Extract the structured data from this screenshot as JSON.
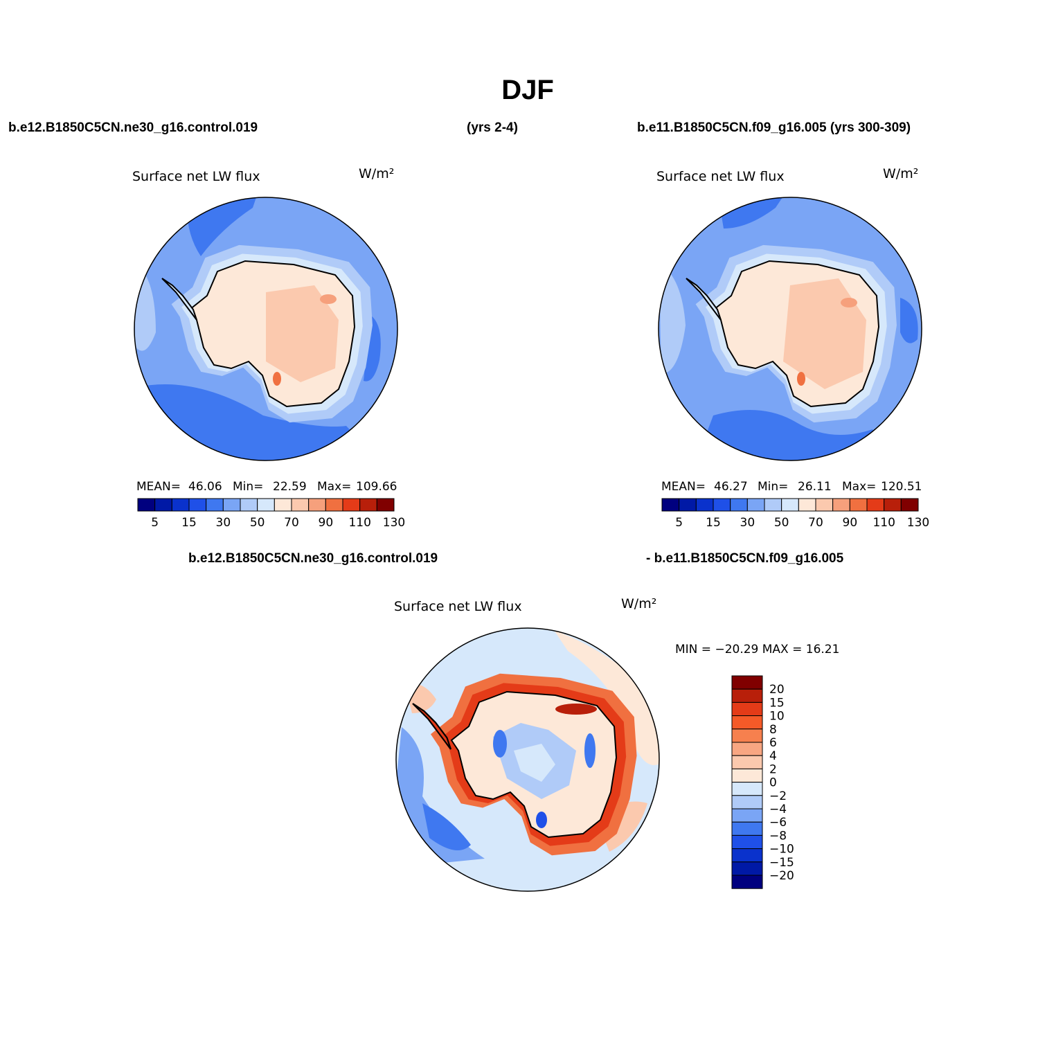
{
  "figure": {
    "title": "DJF",
    "top_left_case": "b.e12.B1850C5CN.ne30_g16.control.019",
    "top_left_years": "(yrs 2-4)",
    "top_right_case": "b.e11.B1850C5CN.f09_g16.005 (yrs 300-309)",
    "diff_case_a": "b.e12.B1850C5CN.ne30_g16.control.019",
    "diff_case_b": "- b.e11.B1850C5CN.f09_g16.005"
  },
  "chart_data": [
    {
      "type": "heatmap",
      "projection": "south-polar-stereographic",
      "title": "Surface net LW flux",
      "units": "W/m²",
      "stats": {
        "mean_label": "MEAN=",
        "mean": "46.06",
        "min_label": "Min=",
        "min": "22.59",
        "max_label": "Max=",
        "max": "109.66"
      },
      "colorbar": {
        "orientation": "horizontal",
        "levels": [
          5,
          10,
          15,
          20,
          30,
          40,
          50,
          60,
          70,
          80,
          90,
          100,
          110,
          120,
          130
        ],
        "tick_labels": [
          "5",
          "15",
          "30",
          "50",
          "70",
          "90",
          "110",
          "130"
        ],
        "colors": [
          "#00007f",
          "#0019a6",
          "#0a32cc",
          "#1f50e8",
          "#3f78f0",
          "#7aa5f5",
          "#b0cbf8",
          "#d6e8fb",
          "#fde8d8",
          "#fbc9ae",
          "#f6a07c",
          "#f07040",
          "#e43b18",
          "#b81f0a",
          "#800000"
        ]
      }
    },
    {
      "type": "heatmap",
      "projection": "south-polar-stereographic",
      "title": "Surface net LW flux",
      "units": "W/m²",
      "stats": {
        "mean_label": "MEAN=",
        "mean": "46.27",
        "min_label": "Min=",
        "min": "26.11",
        "max_label": "Max=",
        "max": "120.51"
      },
      "colorbar": {
        "orientation": "horizontal",
        "levels": [
          5,
          10,
          15,
          20,
          30,
          40,
          50,
          60,
          70,
          80,
          90,
          100,
          110,
          120,
          130
        ],
        "tick_labels": [
          "5",
          "15",
          "30",
          "50",
          "70",
          "90",
          "110",
          "130"
        ],
        "colors": [
          "#00007f",
          "#0019a6",
          "#0a32cc",
          "#1f50e8",
          "#3f78f0",
          "#7aa5f5",
          "#b0cbf8",
          "#d6e8fb",
          "#fde8d8",
          "#fbc9ae",
          "#f6a07c",
          "#f07040",
          "#e43b18",
          "#b81f0a",
          "#800000"
        ]
      }
    },
    {
      "type": "heatmap",
      "projection": "south-polar-stereographic",
      "title": "Surface net LW flux",
      "units": "W/m²",
      "stats_text": "MIN = −20.29  MAX =   16.21",
      "colorbar": {
        "orientation": "vertical",
        "tick_labels": [
          "20",
          "15",
          "10",
          "8",
          "6",
          "4",
          "2",
          "0",
          "−2",
          "−4",
          "−6",
          "−8",
          "−10",
          "−15",
          "−20"
        ],
        "colors": [
          "#800000",
          "#b81f0a",
          "#e43b18",
          "#f55a28",
          "#f6804e",
          "#f8a682",
          "#fbc9ae",
          "#fde8d8",
          "#d6e8fb",
          "#b0cbf8",
          "#7aa5f5",
          "#3f78f0",
          "#1f50e8",
          "#0a32cc",
          "#0019a6",
          "#00007f"
        ]
      }
    }
  ]
}
